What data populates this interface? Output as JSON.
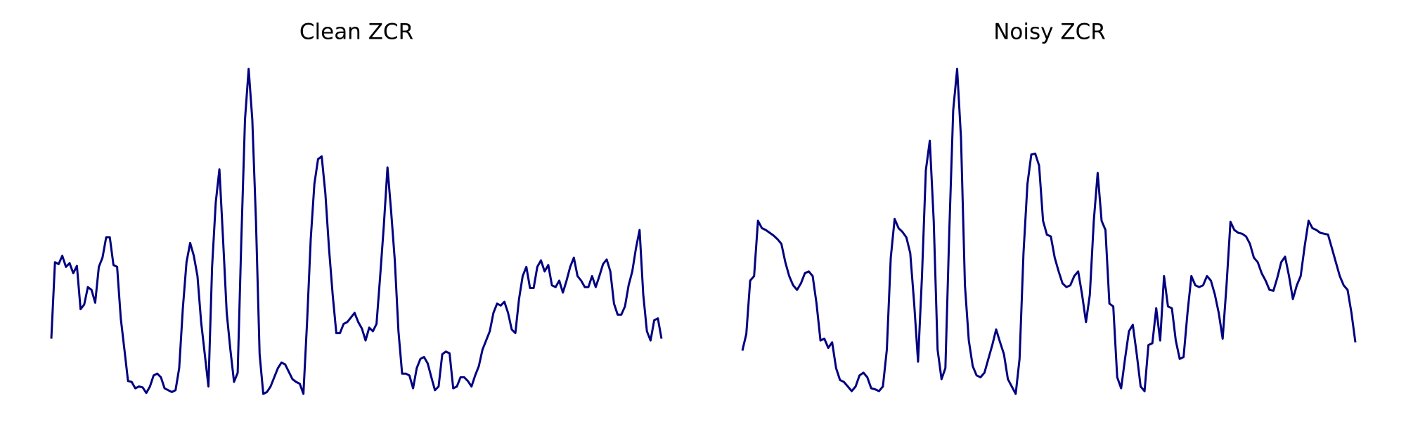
{
  "chart_data": [
    {
      "type": "line",
      "title": "Clean ZCR",
      "color": "#000080",
      "values": [
        0.072,
        0.155,
        0.153,
        0.162,
        0.15,
        0.154,
        0.143,
        0.151,
        0.104,
        0.109,
        0.128,
        0.125,
        0.111,
        0.15,
        0.16,
        0.182,
        0.182,
        0.152,
        0.15,
        0.094,
        0.06,
        0.026,
        0.025,
        0.018,
        0.02,
        0.019,
        0.013,
        0.02,
        0.032,
        0.034,
        0.03,
        0.018,
        0.016,
        0.014,
        0.016,
        0.04,
        0.105,
        0.155,
        0.176,
        0.162,
        0.14,
        0.09,
        0.055,
        0.02,
        0.15,
        0.22,
        0.256,
        0.18,
        0.1,
        0.06,
        0.025,
        0.035,
        0.18,
        0.31,
        0.365,
        0.31,
        0.2,
        0.055,
        0.012,
        0.014,
        0.02,
        0.03,
        0.04,
        0.046,
        0.044,
        0.036,
        0.028,
        0.025,
        0.023,
        0.012,
        0.09,
        0.18,
        0.24,
        0.267,
        0.27,
        0.23,
        0.17,
        0.12,
        0.078,
        0.078,
        0.088,
        0.09,
        0.095,
        0.1,
        0.09,
        0.083,
        0.07,
        0.084,
        0.08,
        0.088,
        0.14,
        0.195,
        0.258,
        0.21,
        0.157,
        0.08,
        0.034,
        0.034,
        0.032,
        0.018,
        0.04,
        0.05,
        0.052,
        0.045,
        0.03,
        0.016,
        0.02,
        0.055,
        0.058,
        0.056,
        0.018,
        0.02,
        0.03,
        0.03,
        0.026,
        0.02,
        0.032,
        0.042,
        0.06,
        0.07,
        0.08,
        0.1,
        0.11,
        0.108,
        0.112,
        0.1,
        0.082,
        0.078,
        0.115,
        0.14,
        0.15,
        0.127,
        0.127,
        0.15,
        0.157,
        0.145,
        0.152,
        0.13,
        0.128,
        0.135,
        0.122,
        0.135,
        0.15,
        0.16,
        0.14,
        0.135,
        0.128,
        0.128,
        0.14,
        0.128,
        0.14,
        0.153,
        0.158,
        0.145,
        0.11,
        0.098,
        0.098,
        0.107,
        0.13,
        0.145,
        0.17,
        0.19,
        0.12,
        0.08,
        0.07,
        0.092,
        0.094,
        0.072
      ]
    },
    {
      "type": "line",
      "title": "Noisy ZCR",
      "color": "#000080",
      "values": [
        0.059,
        0.077,
        0.135,
        0.14,
        0.2,
        0.192,
        0.19,
        0.187,
        0.184,
        0.18,
        0.175,
        0.155,
        0.14,
        0.13,
        0.125,
        0.132,
        0.143,
        0.145,
        0.14,
        0.11,
        0.07,
        0.072,
        0.062,
        0.068,
        0.04,
        0.027,
        0.025,
        0.02,
        0.015,
        0.02,
        0.032,
        0.035,
        0.03,
        0.018,
        0.017,
        0.015,
        0.02,
        0.06,
        0.16,
        0.202,
        0.192,
        0.188,
        0.182,
        0.165,
        0.11,
        0.047,
        0.14,
        0.255,
        0.287,
        0.2,
        0.06,
        0.028,
        0.04,
        0.19,
        0.32,
        0.365,
        0.29,
        0.13,
        0.07,
        0.042,
        0.032,
        0.03,
        0.035,
        0.05,
        0.065,
        0.082,
        0.068,
        0.055,
        0.028,
        0.02,
        0.012,
        0.05,
        0.165,
        0.24,
        0.272,
        0.273,
        0.26,
        0.2,
        0.185,
        0.183,
        0.16,
        0.145,
        0.132,
        0.128,
        0.13,
        0.14,
        0.145,
        0.12,
        0.09,
        0.12,
        0.2,
        0.252,
        0.2,
        0.19,
        0.11,
        0.107,
        0.03,
        0.018,
        0.05,
        0.08,
        0.087,
        0.055,
        0.02,
        0.015,
        0.065,
        0.067,
        0.105,
        0.07,
        0.14,
        0.107,
        0.105,
        0.07,
        0.05,
        0.052,
        0.1,
        0.14,
        0.13,
        0.128,
        0.13,
        0.14,
        0.135,
        0.12,
        0.1,
        0.072,
        0.13,
        0.199,
        0.19,
        0.187,
        0.186,
        0.183,
        0.175,
        0.16,
        0.155,
        0.143,
        0.135,
        0.125,
        0.124,
        0.138,
        0.155,
        0.161,
        0.14,
        0.115,
        0.13,
        0.14,
        0.172,
        0.2,
        0.192,
        0.19,
        0.187,
        0.186,
        0.185,
        0.17,
        0.155,
        0.14,
        0.13,
        0.125,
        0.1,
        0.068
      ]
    }
  ]
}
